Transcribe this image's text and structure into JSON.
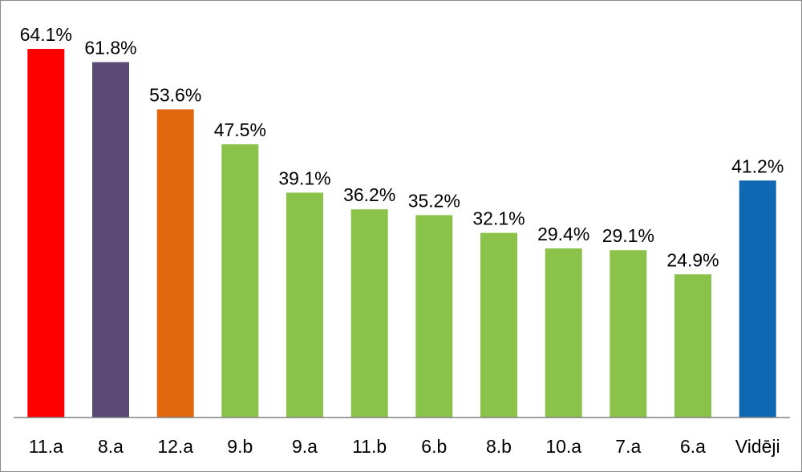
{
  "chart_data": {
    "type": "bar",
    "categories": [
      "11.a",
      "8.a",
      "12.a",
      "9.b",
      "9.a",
      "11.b",
      "6.b",
      "8.b",
      "10.a",
      "7.a",
      "6.a",
      "Vidēji"
    ],
    "values": [
      64.1,
      61.8,
      53.6,
      47.5,
      39.1,
      36.2,
      35.2,
      32.1,
      29.4,
      29.1,
      24.9,
      41.2
    ],
    "value_labels": [
      "64.1%",
      "61.8%",
      "53.6%",
      "47.5%",
      "39.1%",
      "36.2%",
      "35.2%",
      "32.1%",
      "29.4%",
      "29.1%",
      "24.9%",
      "41.2%"
    ],
    "bar_colors": [
      "#ff0000",
      "#5b4a75",
      "#e0690f",
      "#8bc34a",
      "#8bc34a",
      "#8bc34a",
      "#8bc34a",
      "#8bc34a",
      "#8bc34a",
      "#8bc34a",
      "#8bc34a",
      "#1068b3"
    ],
    "title": "",
    "xlabel": "",
    "ylabel": "",
    "ylim": [
      0,
      64.1
    ],
    "grid": false,
    "legend": "none",
    "axis_color": "#808080"
  }
}
